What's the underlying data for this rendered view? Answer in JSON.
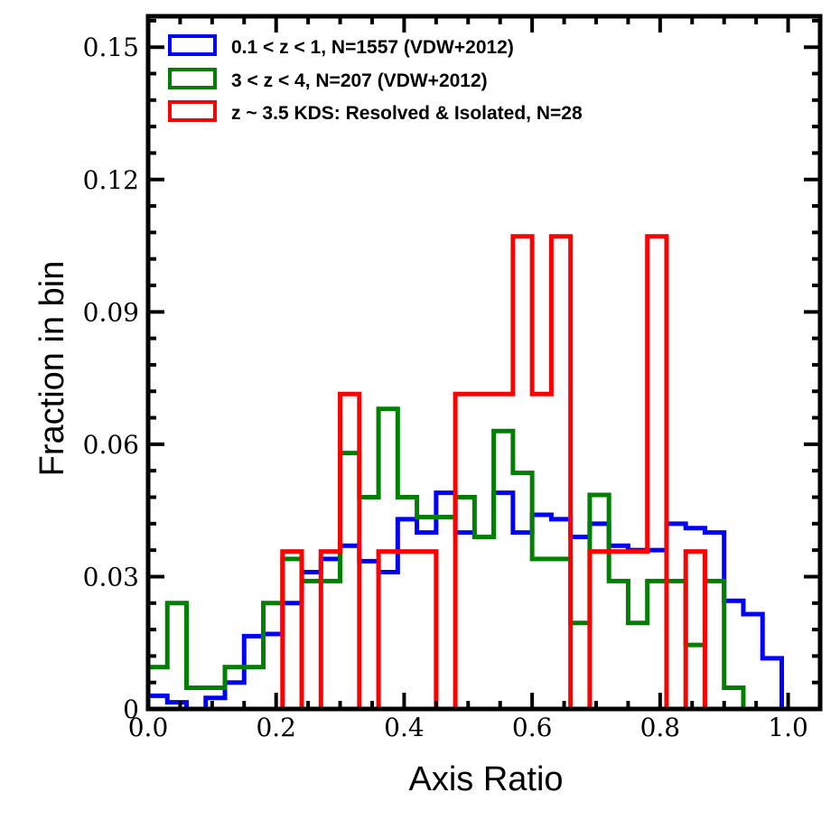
{
  "chart_data": {
    "type": "step-histogram",
    "xlabel": "Axis Ratio",
    "ylabel": "Fraction in bin",
    "xlim": [
      0.0,
      1.05
    ],
    "ylim": [
      0.0,
      0.157
    ],
    "xticks": [
      0.0,
      0.2,
      0.4,
      0.6,
      0.8,
      1.0
    ],
    "xtick_labels": [
      "0.0",
      "0.2",
      "0.4",
      "0.6",
      "0.8",
      "1.0"
    ],
    "yticks": [
      0,
      0.03,
      0.06,
      0.09,
      0.12,
      0.15
    ],
    "ytick_labels": [
      "0",
      "0.03",
      "0.06",
      "0.09",
      "0.12",
      "0.15"
    ],
    "legend_position": "top-left",
    "series": [
      {
        "name": "0.1 < z < 1, N=1557 (VDW+2012)",
        "color": "#0000ff",
        "bin_width": 0.03,
        "bin_start": 0.0,
        "values": [
          0.003,
          0.0015,
          0.0,
          0.0025,
          0.006,
          0.0165,
          0.017,
          0.024,
          0.031,
          0.034,
          0.037,
          0.0335,
          0.031,
          0.043,
          0.04,
          0.049,
          0.04,
          0.039,
          0.049,
          0.04,
          0.044,
          0.043,
          0.039,
          0.042,
          0.037,
          0.036,
          0.036,
          0.042,
          0.041,
          0.04,
          0.0245,
          0.0215,
          0.0115,
          0.0
        ]
      },
      {
        "name": "3 < z < 4, N=207 (VDW+2012)",
        "color": "#008000",
        "bin_width": 0.03,
        "bin_start": 0.0,
        "values": [
          0.0095,
          0.024,
          0.0048,
          0.0048,
          0.0095,
          0.0095,
          0.024,
          0.034,
          0.029,
          0.029,
          0.058,
          0.048,
          0.068,
          0.048,
          0.0435,
          0.0435,
          0.048,
          0.039,
          0.063,
          0.0535,
          0.034,
          0.034,
          0.0195,
          0.0485,
          0.029,
          0.0195,
          0.029,
          0.029,
          0.0145,
          0.029,
          0.0048,
          0.0,
          0.0,
          0.0
        ]
      },
      {
        "name": "z ~ 3.5 KDS: Resolved & Isolated, N=28",
        "color": "#ff0000",
        "bin_edges": [
          0.21,
          0.24,
          0.27,
          0.3,
          0.33,
          0.36,
          0.45,
          0.48,
          0.57,
          0.6,
          0.63,
          0.66,
          0.69,
          0.78,
          0.81,
          0.84,
          0.87
        ],
        "values": [
          0.0357,
          0.0,
          0.0357,
          0.0714,
          0.0,
          0.0357,
          0.0,
          0.0714,
          0.1071,
          0.0714,
          0.1071,
          0.0,
          0.0357,
          0.1071,
          0.0,
          0.0357
        ]
      }
    ]
  },
  "legend": {
    "items": [
      {
        "label": "0.1 < z < 1, N=1557 (VDW+2012)"
      },
      {
        "label": "3 < z < 4, N=207 (VDW+2012)"
      },
      {
        "label": "z ~ 3.5 KDS: Resolved & Isolated, N=28"
      }
    ]
  }
}
